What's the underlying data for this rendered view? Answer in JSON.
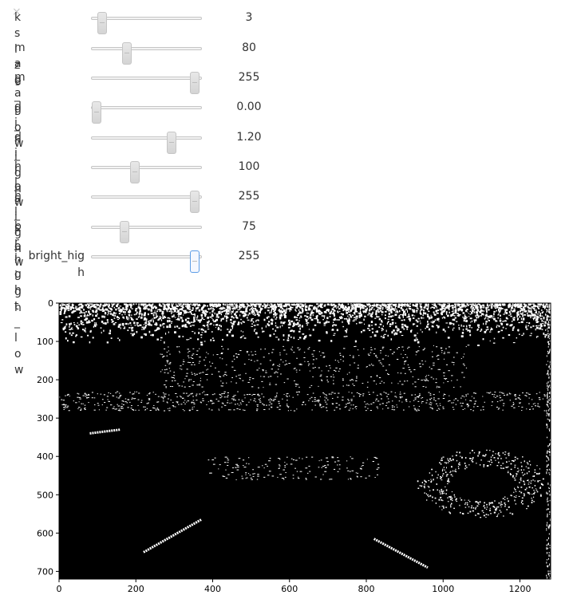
{
  "close_icon": "×",
  "sliders": [
    {
      "label": "ksize",
      "value": "3",
      "fraction": 0.1
    },
    {
      "label": "mag_low",
      "value": "80",
      "fraction": 0.33
    },
    {
      "label": "mag_high",
      "value": "255",
      "fraction": 0.95
    },
    {
      "label": "dir_low",
      "value": "0.00",
      "fraction": 0.05
    },
    {
      "label": "dir_high",
      "value": "1.20",
      "fraction": 0.74
    },
    {
      "label": "hls_low",
      "value": "100",
      "fraction": 0.4
    },
    {
      "label": "hls_high",
      "value": "255",
      "fraction": 0.95
    },
    {
      "label": "bright_low",
      "value": "75",
      "fraction": 0.31
    },
    {
      "label": "bright_high",
      "value": "255",
      "fraction": 0.95
    }
  ],
  "plot": {
    "x_ticks": [
      "0",
      "200",
      "400",
      "600",
      "800",
      "1000",
      "1200"
    ],
    "y_ticks": [
      "0",
      "100",
      "200",
      "300",
      "400",
      "500",
      "600",
      "700"
    ],
    "image_width": 1280,
    "image_height": 720,
    "background": "#000000",
    "foreground": "#ffffff"
  }
}
